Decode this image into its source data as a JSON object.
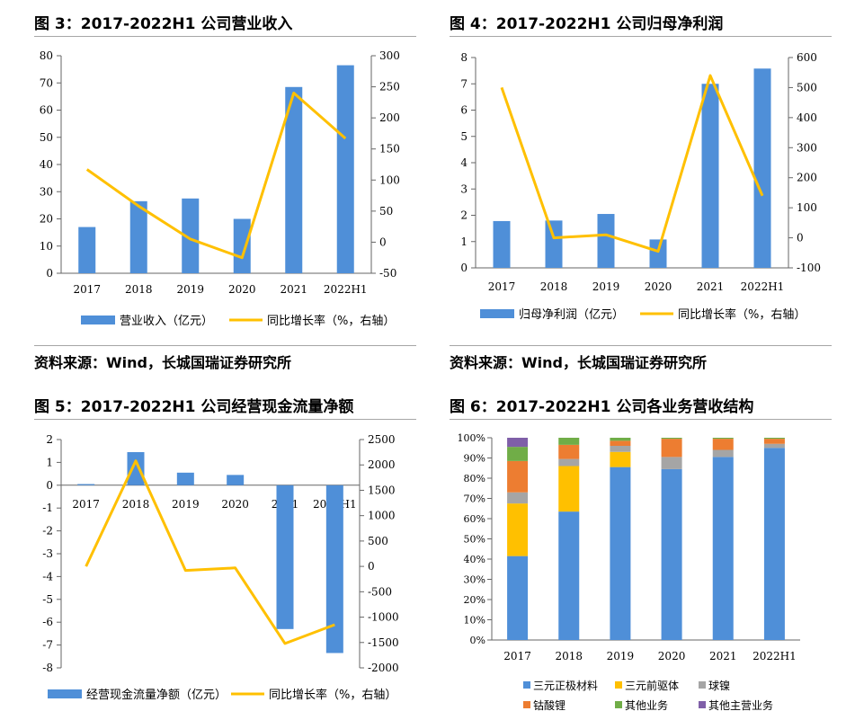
{
  "charts": [
    {
      "title": "图 3：2017-2022H1 公司营业收入",
      "source": "资料来源：Wind，长城国瑞证券研究所",
      "chart_data": {
        "type": "bar",
        "categories": [
          "2017",
          "2018",
          "2019",
          "2020",
          "2021",
          "2022H1"
        ],
        "series": [
          {
            "name": "营业收入（亿元）",
            "type": "bar",
            "axis": "left",
            "color": "#4f8fd8",
            "values": [
              17,
              26.5,
              27.5,
              20,
              68.5,
              76.5
            ]
          },
          {
            "name": "同比增长率（%，右轴）",
            "type": "line",
            "axis": "right",
            "color": "#ffc000",
            "values": [
              117,
              58,
              5,
              -25,
              240,
              167
            ]
          }
        ],
        "ylim": [
          0,
          80
        ],
        "y2lim": [
          -50,
          300
        ],
        "yticks": [
          "0",
          "10",
          "20",
          "30",
          "40",
          "50",
          "60",
          "70",
          "80"
        ],
        "y2ticks": [
          "-50",
          "0",
          "50",
          "100",
          "150",
          "200",
          "250",
          "300"
        ]
      }
    },
    {
      "title": "图 4：2017-2022H1 公司归母净利润",
      "source": "资料来源：Wind，长城国瑞证券研究所",
      "chart_data": {
        "type": "bar",
        "categories": [
          "2017",
          "2018",
          "2019",
          "2020",
          "2021",
          "2022H1"
        ],
        "series": [
          {
            "name": "归母净利润（亿元）",
            "type": "bar",
            "axis": "left",
            "color": "#4f8fd8",
            "values": [
              1.78,
              1.8,
              2.05,
              1.08,
              7.0,
              7.58
            ]
          },
          {
            "name": "同比增长率（%，右轴）",
            "type": "line",
            "axis": "right",
            "color": "#ffc000",
            "values": [
              500,
              0,
              10,
              -45,
              540,
              140
            ]
          }
        ],
        "ylim": [
          0,
          8
        ],
        "y2lim": [
          -100,
          600
        ],
        "yticks": [
          "0",
          "1",
          "2",
          "3",
          "4",
          "5",
          "6",
          "7",
          "8"
        ],
        "y2ticks": [
          "-100",
          "0",
          "100",
          "200",
          "300",
          "400",
          "500",
          "600"
        ]
      }
    },
    {
      "title": "图 5：2017-2022H1 公司经营现金流量净额",
      "chart_data": {
        "type": "bar",
        "categories": [
          "2017",
          "2018",
          "2019",
          "2020",
          "2021",
          "2022H1"
        ],
        "series": [
          {
            "name": "经营现金流量净额（亿元）",
            "type": "bar",
            "axis": "left",
            "color": "#4f8fd8",
            "values": [
              0.05,
              1.45,
              0.55,
              0.45,
              -6.3,
              -7.35
            ]
          },
          {
            "name": "同比增长率（%，右轴）",
            "type": "line",
            "axis": "right",
            "color": "#ffc000",
            "values": [
              0,
              2080,
              -80,
              -30,
              -1520,
              -1150
            ]
          }
        ],
        "ylim": [
          -8,
          2
        ],
        "y2lim": [
          -2000,
          2500
        ],
        "yticks": [
          "-8",
          "-7",
          "-6",
          "-5",
          "-4",
          "-3",
          "-2",
          "-1",
          "0",
          "1",
          "2"
        ],
        "y2ticks": [
          "-2000",
          "-1500",
          "-1000",
          "-500",
          "0",
          "500",
          "1000",
          "1500",
          "2000",
          "2500"
        ]
      }
    },
    {
      "title": "图 6：2017-2022H1 公司各业务营收结构",
      "chart_data": {
        "type": "bar",
        "stacked": "percent",
        "categories": [
          "2017",
          "2018",
          "2019",
          "2020",
          "2021",
          "2022H1"
        ],
        "series": [
          {
            "name": "三元正极材料",
            "color": "#4f8fd8",
            "values": [
              41.5,
              63.5,
              85.5,
              84.5,
              90.5,
              95
            ]
          },
          {
            "name": "三元前驱体",
            "color": "#ffc000",
            "values": [
              26,
              22.5,
              7.5,
              0,
              0,
              0
            ]
          },
          {
            "name": "球镍",
            "color": "#a5a5a5",
            "values": [
              5.5,
              3.5,
              3,
              6,
              3.5,
              2
            ]
          },
          {
            "name": "钴酸锂",
            "color": "#ed7d31",
            "values": [
              15.5,
              7,
              2.5,
              9,
              5.5,
              2.5
            ]
          },
          {
            "name": "其他业务",
            "color": "#70ad47",
            "values": [
              7,
              3.5,
              1.5,
              0.5,
              0.5,
              0.5
            ]
          },
          {
            "name": "其他主营业务",
            "color": "#7f5fa8",
            "values": [
              4.5,
              0,
              0,
              0,
              0,
              0
            ]
          }
        ],
        "ylim": [
          0,
          100
        ],
        "yticks": [
          "0%",
          "10%",
          "20%",
          "30%",
          "40%",
          "50%",
          "60%",
          "70%",
          "80%",
          "90%",
          "100%"
        ]
      }
    }
  ]
}
